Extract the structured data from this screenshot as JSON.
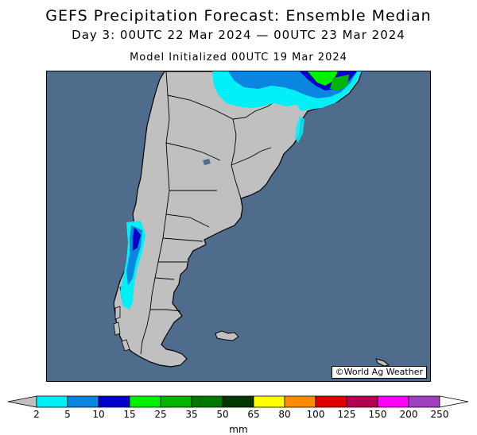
{
  "header": {
    "title": "GEFS Precipitation Forecast: Ensemble Median",
    "valid_period": "Day 3: 00UTC 22 Mar 2024 — 00UTC 23 Mar 2024",
    "initialized": "Model Initialized 00UTC 19 Mar 2024"
  },
  "map": {
    "credit": "©World Ag Weather",
    "ocean_color": "#4f6c8c",
    "land_color": "#c0c0c0"
  },
  "legend": {
    "units": "mm",
    "levels": [
      "2",
      "5",
      "10",
      "15",
      "25",
      "35",
      "50",
      "65",
      "80",
      "100",
      "125",
      "150",
      "200",
      "250"
    ],
    "colors": [
      "#00f0f8",
      "#0a86e0",
      "#0000c8",
      "#00f000",
      "#00b400",
      "#007800",
      "#003800",
      "#ffff00",
      "#ff8c00",
      "#e00000",
      "#b40050",
      "#ff00ff",
      "#a040c0"
    ],
    "under_color": "#c0c0c0",
    "over_color": "#ffffff"
  }
}
